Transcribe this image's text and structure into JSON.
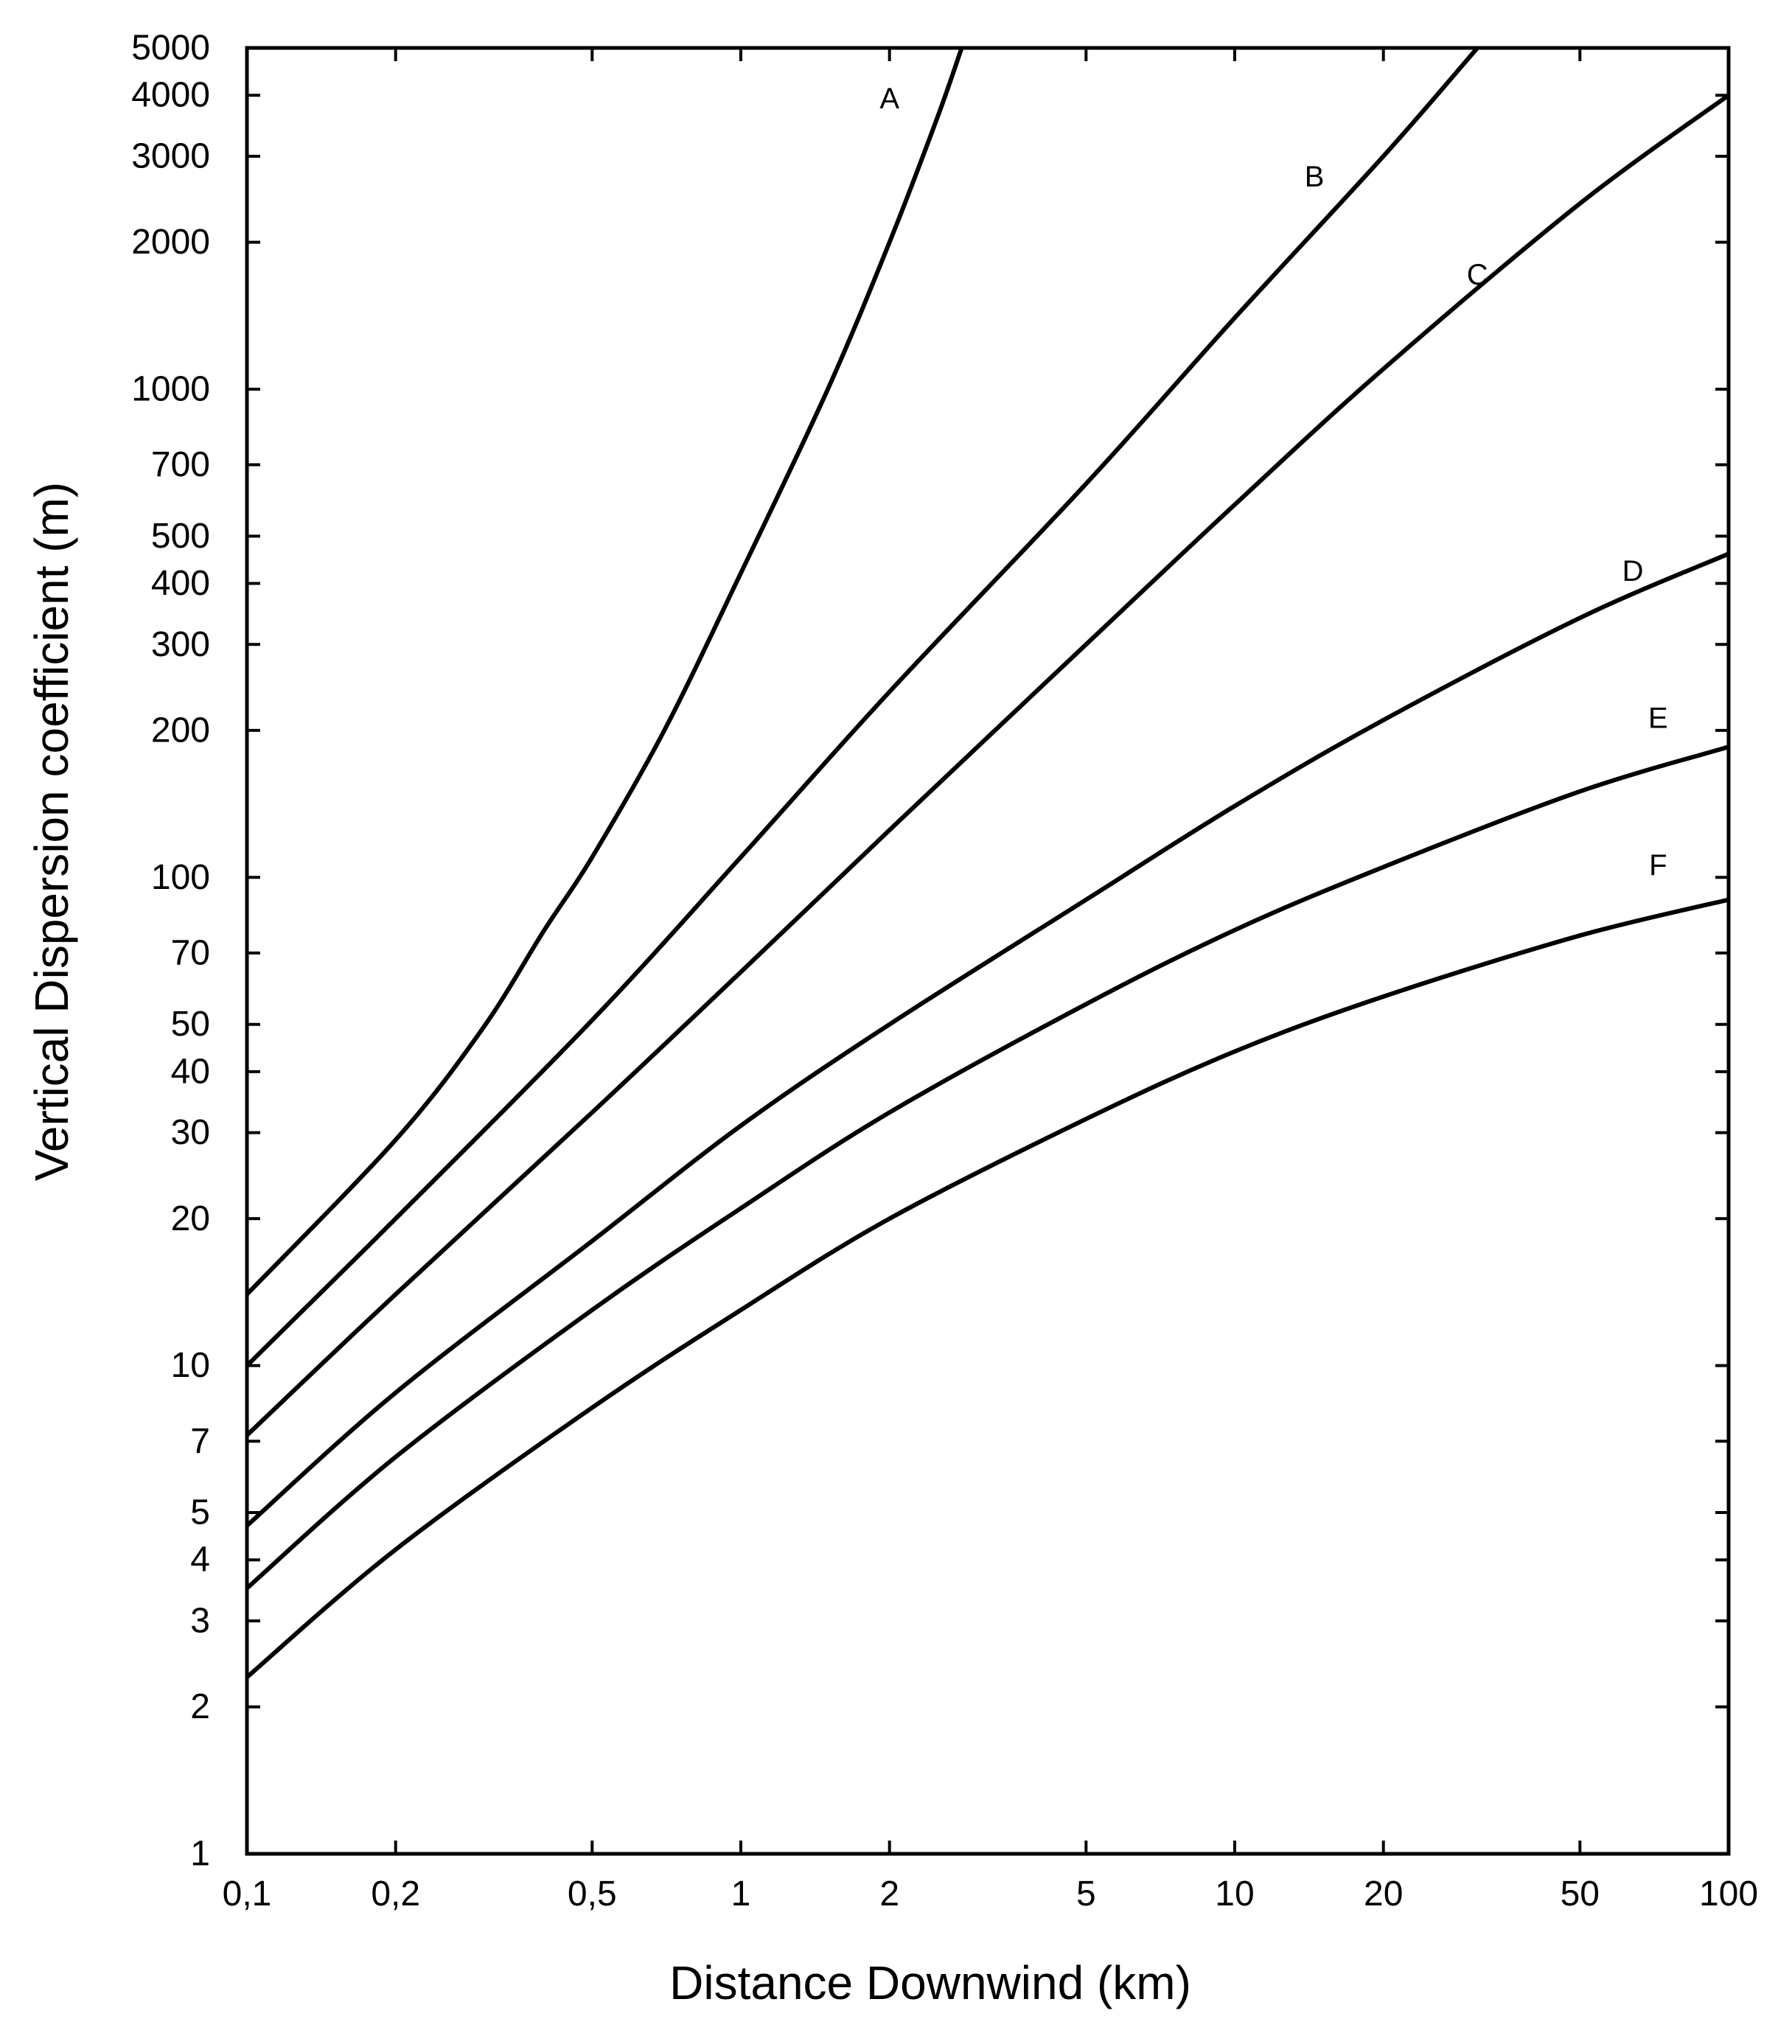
{
  "chart_data": {
    "type": "line",
    "xlabel": "Distance Downwind (km)",
    "ylabel": "Vertical Dispersion coefficient (m)",
    "x_scale": "log",
    "y_scale": "log",
    "xlim": [
      0.1,
      100
    ],
    "ylim": [
      1,
      5000
    ],
    "grid": false,
    "x_ticks": [
      {
        "value": 0.1,
        "label": "0,1"
      },
      {
        "value": 0.2,
        "label": "0,2"
      },
      {
        "value": 0.5,
        "label": "0,5"
      },
      {
        "value": 1,
        "label": "1"
      },
      {
        "value": 2,
        "label": "2"
      },
      {
        "value": 5,
        "label": "5"
      },
      {
        "value": 10,
        "label": "10"
      },
      {
        "value": 20,
        "label": "20"
      },
      {
        "value": 50,
        "label": "50"
      },
      {
        "value": 100,
        "label": "100"
      }
    ],
    "y_ticks": [
      {
        "value": 1,
        "label": "1"
      },
      {
        "value": 2,
        "label": "2"
      },
      {
        "value": 3,
        "label": "3"
      },
      {
        "value": 4,
        "label": "4"
      },
      {
        "value": 5,
        "label": "5"
      },
      {
        "value": 7,
        "label": "7"
      },
      {
        "value": 10,
        "label": "10"
      },
      {
        "value": 20,
        "label": "20"
      },
      {
        "value": 30,
        "label": "30"
      },
      {
        "value": 40,
        "label": "40"
      },
      {
        "value": 50,
        "label": "50"
      },
      {
        "value": 70,
        "label": "70"
      },
      {
        "value": 100,
        "label": "100"
      },
      {
        "value": 200,
        "label": "200"
      },
      {
        "value": 300,
        "label": "300"
      },
      {
        "value": 400,
        "label": "400"
      },
      {
        "value": 500,
        "label": "500"
      },
      {
        "value": 700,
        "label": "700"
      },
      {
        "value": 1000,
        "label": "1000"
      },
      {
        "value": 2000,
        "label": "2000"
      },
      {
        "value": 3000,
        "label": "3000"
      },
      {
        "value": 4000,
        "label": "4000"
      },
      {
        "value": 5000,
        "label": "5000"
      }
    ],
    "series": [
      {
        "name": "A",
        "label_at": {
          "x": 2.0,
          "y": 3900
        },
        "points": [
          [
            0.1,
            14
          ],
          [
            0.2,
            29
          ],
          [
            0.3,
            49
          ],
          [
            0.4,
            78
          ],
          [
            0.5,
            110
          ],
          [
            0.7,
            200
          ],
          [
            1,
            420
          ],
          [
            1.5,
            1000
          ],
          [
            2,
            2000
          ],
          [
            2.5,
            3600
          ],
          [
            2.8,
            5000
          ]
        ]
      },
      {
        "name": "B",
        "label_at": {
          "x": 14.5,
          "y": 2700
        },
        "points": [
          [
            0.1,
            10
          ],
          [
            0.2,
            20
          ],
          [
            0.5,
            51
          ],
          [
            1,
            110
          ],
          [
            2,
            240
          ],
          [
            5,
            640
          ],
          [
            10,
            1400
          ],
          [
            20,
            3000
          ],
          [
            31,
            5000
          ]
        ]
      },
      {
        "name": "C",
        "label_at": {
          "x": 31,
          "y": 1700
        },
        "points": [
          [
            0.1,
            7.2
          ],
          [
            0.2,
            14
          ],
          [
            0.5,
            33
          ],
          [
            1,
            64
          ],
          [
            2,
            125
          ],
          [
            5,
            300
          ],
          [
            10,
            580
          ],
          [
            20,
            1100
          ],
          [
            50,
            2400
          ],
          [
            100,
            4000
          ]
        ]
      },
      {
        "name": "D",
        "label_at": {
          "x": 64,
          "y": 420
        },
        "points": [
          [
            0.1,
            4.7
          ],
          [
            0.2,
            8.8
          ],
          [
            0.5,
            18
          ],
          [
            1,
            31
          ],
          [
            2,
            50
          ],
          [
            5,
            90
          ],
          [
            10,
            140
          ],
          [
            20,
            210
          ],
          [
            50,
            340
          ],
          [
            100,
            460
          ]
        ]
      },
      {
        "name": "E",
        "label_at": {
          "x": 72,
          "y": 210
        },
        "points": [
          [
            0.1,
            3.5
          ],
          [
            0.2,
            6.5
          ],
          [
            0.5,
            13
          ],
          [
            1,
            21
          ],
          [
            2,
            33
          ],
          [
            5,
            55
          ],
          [
            10,
            78
          ],
          [
            20,
            105
          ],
          [
            50,
            150
          ],
          [
            100,
            185
          ]
        ]
      },
      {
        "name": "F",
        "label_at": {
          "x": 72,
          "y": 105
        },
        "points": [
          [
            0.1,
            2.3
          ],
          [
            0.2,
            4.2
          ],
          [
            0.5,
            8.2
          ],
          [
            1,
            13
          ],
          [
            2,
            20
          ],
          [
            5,
            32
          ],
          [
            10,
            44
          ],
          [
            20,
            57
          ],
          [
            50,
            76
          ],
          [
            100,
            90
          ]
        ]
      }
    ]
  }
}
